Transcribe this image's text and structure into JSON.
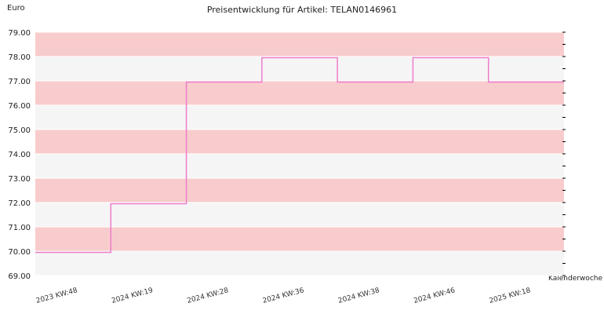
{
  "chart_data": {
    "type": "line",
    "title": "Preisentwicklung für Artikel: TELAN0146961",
    "ylabel": "Euro",
    "xlabel": "Kalenderwoche",
    "step": true,
    "categories": [
      "2023 KW:48",
      "2024 KW:19",
      "2024 KW:28",
      "2024 KW:36",
      "2024 KW:38",
      "2024 KW:46",
      "2025 KW:18"
    ],
    "series": [
      {
        "values": [
          69.95,
          71.95,
          76.95,
          77.95,
          76.95,
          77.95,
          76.95
        ]
      }
    ],
    "ylim": [
      69.0,
      79.0
    ],
    "yticks": [
      "69.00",
      "70.00",
      "71.00",
      "72.00",
      "73.00",
      "74.00",
      "75.00",
      "76.00",
      "77.00",
      "78.00",
      "79.00"
    ],
    "grid": true,
    "band_colors": [
      "#f5f5f5",
      "#f8cccc"
    ],
    "line_color": "#ee7dcc"
  }
}
